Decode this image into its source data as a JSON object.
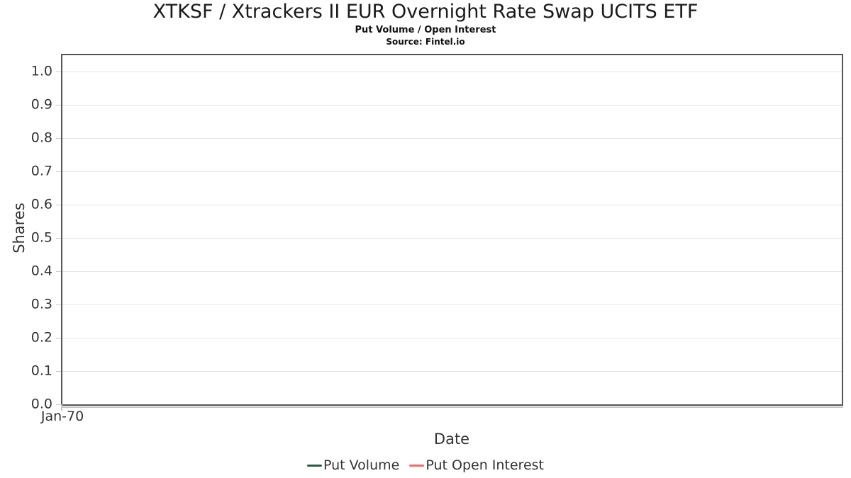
{
  "page": {
    "background": "#ffffff"
  },
  "chart_data": {
    "type": "line",
    "title": "XTKSF / Xtrackers II EUR Overnight Rate Swap UCITS ETF",
    "subtitle": "Put Volume / Open Interest",
    "source": "Source: Fintel.io",
    "xlabel": "Date",
    "ylabel": "Shares",
    "x_ticks": [
      "Jan-70"
    ],
    "x_tick_fractions": [
      0
    ],
    "y_ticks": [
      0.0,
      0.1,
      0.2,
      0.3,
      0.4,
      0.5,
      0.6,
      0.7,
      0.8,
      0.9,
      1.0
    ],
    "ylim": [
      0,
      1.05
    ],
    "grid": true,
    "legend_position": "bottom-center",
    "series": [
      {
        "name": "Put Volume",
        "color": "#2e5e41",
        "x": [],
        "values": []
      },
      {
        "name": "Put Open Interest",
        "color": "#f96a62",
        "x": [],
        "values": []
      }
    ],
    "colors": {
      "plot_border": "#55565a",
      "gridline": "#e5e5e5",
      "axis_line": "#c6c6c6",
      "tick_text": "#333333",
      "title_text": "#1a1a1a"
    }
  }
}
